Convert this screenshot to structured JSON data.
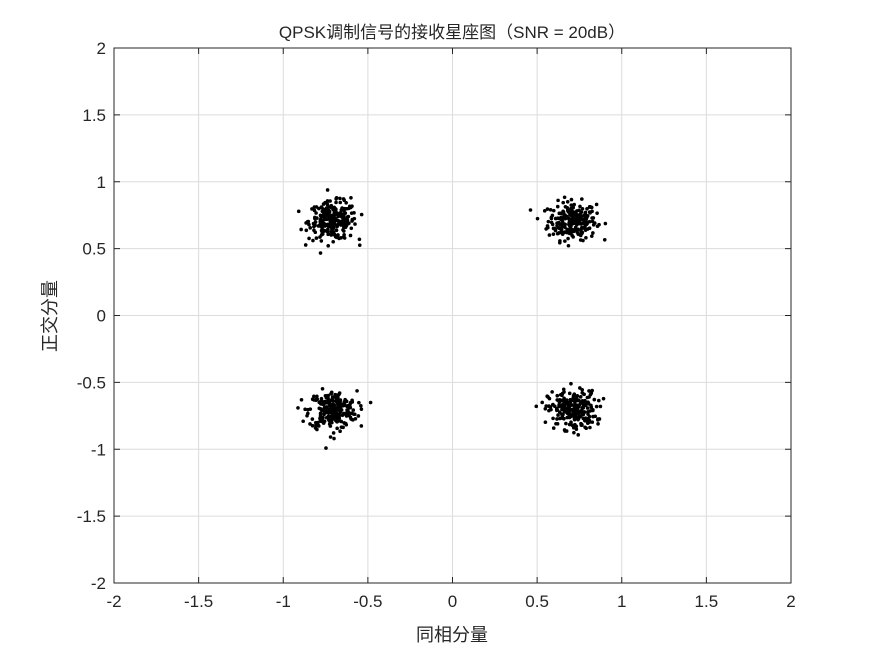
{
  "chart_data": {
    "type": "scatter",
    "title": "QPSK调制信号的接收星座图（SNR = 20dB）",
    "xlabel": "同相分量",
    "ylabel": "正交分量",
    "xlim": [
      -2,
      2
    ],
    "ylim": [
      -2,
      2
    ],
    "xticks": [
      -2,
      -1.5,
      -1,
      -0.5,
      0,
      0.5,
      1,
      1.5,
      2
    ],
    "yticks": [
      -2,
      -1.5,
      -1,
      -0.5,
      0,
      0.5,
      1,
      1.5,
      2
    ],
    "xtick_labels": [
      "-2",
      "-1.5",
      "-1",
      "-0.5",
      "0",
      "0.5",
      "1",
      "1.5",
      "2"
    ],
    "ytick_labels": [
      "-2",
      "-1.5",
      "-1",
      "-0.5",
      "0",
      "0.5",
      "1",
      "1.5",
      "2"
    ],
    "grid": true,
    "marker_color": "#000000",
    "snr_db": 20,
    "cluster_centers": [
      [
        0.707,
        0.707
      ],
      [
        -0.707,
        0.707
      ],
      [
        -0.707,
        -0.707
      ],
      [
        0.707,
        -0.707
      ]
    ],
    "points_per_cluster": 250,
    "outliers": [
      [
        -0.55,
        0.57
      ],
      [
        -0.6,
        0.88
      ],
      [
        0.53,
        -0.65
      ],
      [
        0.7,
        -0.51
      ],
      [
        -0.7,
        -0.92
      ],
      [
        0.86,
        -0.81
      ]
    ]
  }
}
